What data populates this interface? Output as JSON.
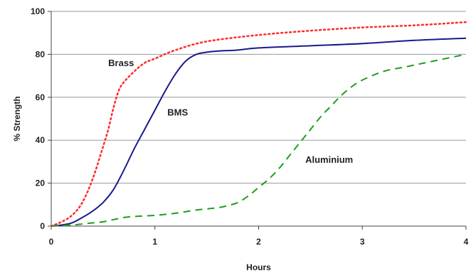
{
  "chart_data": {
    "type": "line",
    "title": "",
    "xlabel": "Hours",
    "ylabel": "% Strength",
    "xlim": [
      0,
      4
    ],
    "ylim": [
      0,
      100
    ],
    "x_ticks": [
      "0",
      "1",
      "2",
      "3",
      "4"
    ],
    "y_ticks": [
      "0",
      "20",
      "40",
      "60",
      "80",
      "100"
    ],
    "grid": "horizontal",
    "legend": "none",
    "series": [
      {
        "name": "Brass",
        "style": "dotted",
        "color": "#ff2a2a",
        "x": [
          0,
          0.1,
          0.2,
          0.3,
          0.4,
          0.5,
          0.55,
          0.6,
          0.65,
          0.7,
          0.8,
          0.9,
          1.0,
          1.2,
          1.5,
          2.0,
          2.5,
          3.0,
          3.5,
          4.0
        ],
        "y": [
          0,
          2,
          5,
          11,
          22,
          37,
          45,
          55,
          63,
          67,
          72,
          76,
          78,
          82,
          86,
          89,
          91,
          92.5,
          93.5,
          95
        ]
      },
      {
        "name": "BMS",
        "style": "solid",
        "color": "#1a1a8c",
        "x": [
          0,
          0.1,
          0.2,
          0.3,
          0.4,
          0.5,
          0.6,
          0.7,
          0.8,
          0.9,
          1.0,
          1.1,
          1.2,
          1.3,
          1.4,
          1.5,
          1.6,
          1.8,
          2.0,
          2.5,
          3.0,
          3.5,
          4.0
        ],
        "y": [
          0,
          0.5,
          1.5,
          4,
          7,
          11,
          17,
          26,
          36,
          45,
          54,
          63,
          71,
          77,
          80,
          81,
          81.5,
          82,
          83,
          84,
          85,
          86.5,
          87.5
        ]
      },
      {
        "name": "Aluminium",
        "style": "dashed",
        "color": "#1f9e1f",
        "x": [
          0,
          0.2,
          0.4,
          0.5,
          0.6,
          0.7,
          0.8,
          1.0,
          1.2,
          1.4,
          1.6,
          1.7,
          1.8,
          1.9,
          2.0,
          2.1,
          2.2,
          2.3,
          2.4,
          2.5,
          2.6,
          2.7,
          2.8,
          2.9,
          3.0,
          3.2,
          3.4,
          3.6,
          3.8,
          4.0
        ],
        "y": [
          0,
          0.5,
          1.5,
          2,
          3,
          4,
          4.5,
          5,
          6,
          7.5,
          8.5,
          9.5,
          11,
          14,
          18,
          22,
          27,
          33,
          39,
          45,
          51,
          56,
          61,
          65,
          68,
          72,
          74,
          76,
          78,
          80
        ]
      }
    ],
    "annotations": [
      {
        "text": "Brass",
        "x": 0.55,
        "y": 74.5
      },
      {
        "text": "BMS",
        "x": 1.12,
        "y": 51.5
      },
      {
        "text": "Aluminium",
        "x": 2.45,
        "y": 29.5
      }
    ]
  }
}
